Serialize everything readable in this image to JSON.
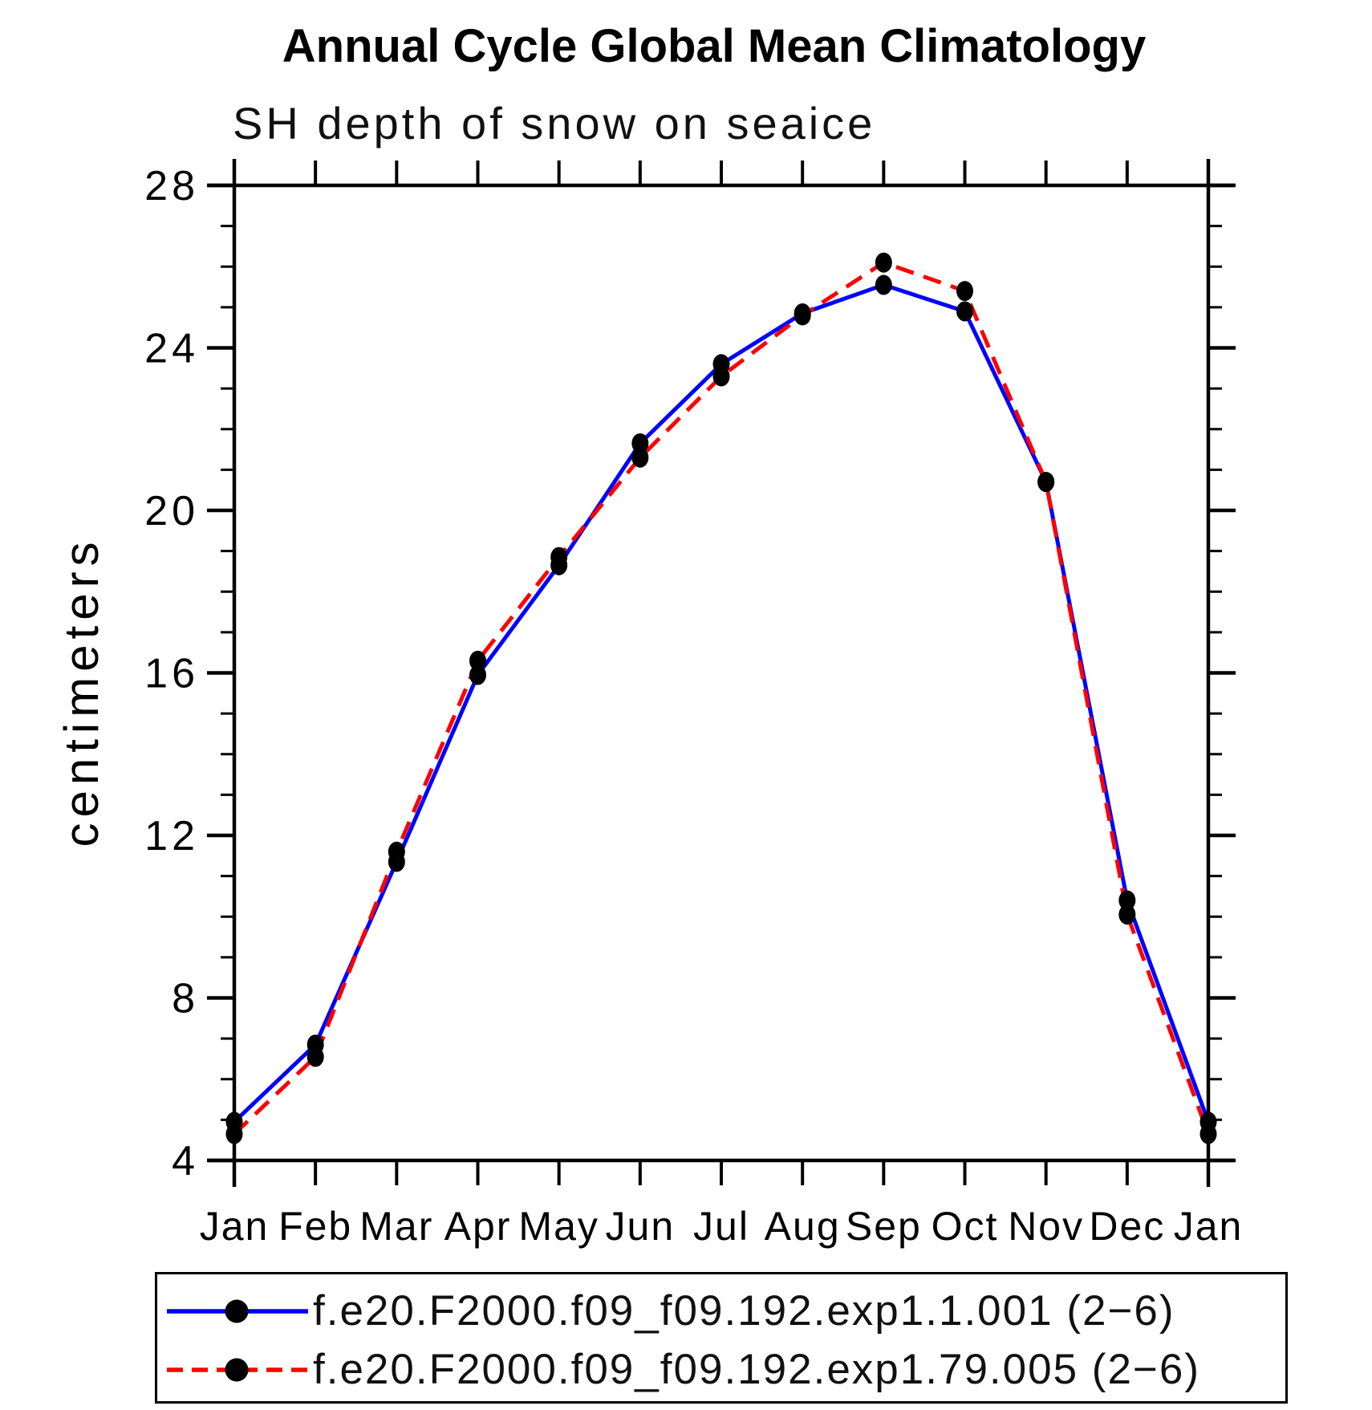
{
  "title": "Annual Cycle Global Mean Climatology",
  "subtitle": "SH depth of snow on seaice",
  "y_axis_label": "centimeters",
  "colors": {
    "series1": "#0000ff",
    "series2": "#ff0000",
    "marker": "#000000",
    "axis": "#000000"
  },
  "legend": [
    {
      "label": "f.e20.F2000.f09_f09.192.exp1.1.001 (2−6)",
      "style": "solid",
      "color": "#0000ff"
    },
    {
      "label": "f.e20.F2000.f09_f09.192.exp1.79.005 (2−6)",
      "style": "dashed",
      "color": "#ff0000"
    }
  ],
  "chart_data": {
    "type": "line",
    "title": "Annual Cycle Global Mean Climatology",
    "subtitle": "SH depth of snow on seaice",
    "xlabel": "",
    "ylabel": "centimeters",
    "categories": [
      "Jan",
      "Feb",
      "Mar",
      "Apr",
      "May",
      "Jun",
      "Jul",
      "Aug",
      "Sep",
      "Oct",
      "Nov",
      "Dec",
      "Jan"
    ],
    "series": [
      {
        "name": "f.e20.F2000.f09_f09.192.exp1.1.001 (2−6)",
        "color": "#0000ff",
        "style": "solid",
        "marker": "filled-circle",
        "values": [
          4.95,
          6.85,
          11.35,
          15.95,
          18.65,
          21.65,
          23.6,
          24.85,
          25.55,
          24.9,
          20.7,
          10.4,
          4.95
        ]
      },
      {
        "name": "f.e20.F2000.f09_f09.192.exp1.79.005 (2−6)",
        "color": "#ff0000",
        "style": "dashed",
        "marker": "filled-circle",
        "values": [
          4.65,
          6.55,
          11.6,
          16.3,
          18.85,
          21.3,
          23.3,
          24.8,
          26.1,
          25.4,
          20.7,
          10.05,
          4.65
        ]
      }
    ],
    "ylim": [
      4,
      28
    ],
    "yticks_major": [
      4,
      8,
      12,
      16,
      20,
      24,
      28
    ],
    "ytick_minor_step": 1,
    "grid": false,
    "legend_position": "bottom"
  }
}
